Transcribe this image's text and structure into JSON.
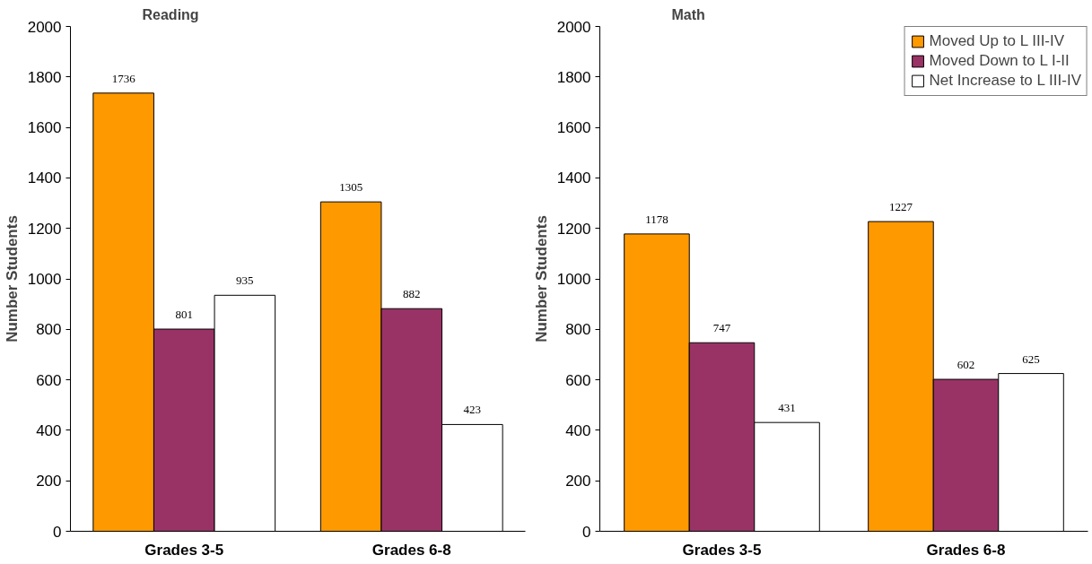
{
  "chart_data": [
    {
      "type": "bar",
      "title": "Reading",
      "ylabel": "Number Students",
      "categories": [
        "Grades 3-5",
        "Grades 6-8"
      ],
      "series": [
        {
          "color": "#ff9900",
          "values": [
            1736,
            1305
          ]
        },
        {
          "color": "#993366",
          "values": [
            801,
            882
          ]
        },
        {
          "color": "#ffffff",
          "values": [
            935,
            423
          ]
        }
      ],
      "ylim": [
        0,
        2000
      ],
      "yticks": [
        0,
        200,
        400,
        600,
        800,
        1000,
        1200,
        1400,
        1600,
        1800,
        2000
      ],
      "data_labels": true,
      "grid": false,
      "legend": false
    },
    {
      "type": "bar",
      "title": "Math",
      "ylabel": "Number Students",
      "categories": [
        "Grades 3-5",
        "Grades 6-8"
      ],
      "series": [
        {
          "name": "Moved Up to L III-IV",
          "color": "#ff9900",
          "values": [
            1178,
            1227
          ]
        },
        {
          "name": "Moved Down to L I-II",
          "color": "#993366",
          "values": [
            747,
            602
          ]
        },
        {
          "name": "Net Increase to L III-IV",
          "color": "#ffffff",
          "values": [
            431,
            625
          ]
        }
      ],
      "ylim": [
        0,
        2000
      ],
      "yticks": [
        0,
        200,
        400,
        600,
        800,
        1000,
        1200,
        1400,
        1600,
        1800,
        2000
      ],
      "data_labels": true,
      "grid": false,
      "legend": "top right"
    }
  ]
}
